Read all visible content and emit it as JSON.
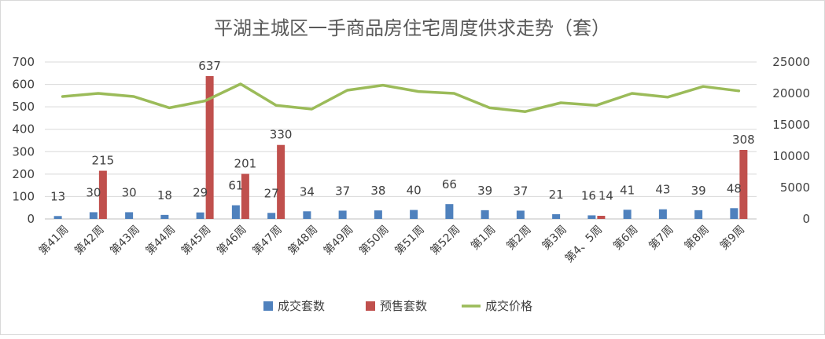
{
  "chart_data": {
    "type": "bar",
    "title": "平湖主城区一手商品房住宅周度供求走势（套）",
    "categories": [
      "第41周",
      "第42周",
      "第43周",
      "第44周",
      "第45周",
      "第46周",
      "第47周",
      "第48周",
      "第49周",
      "第50周",
      "第51周",
      "第52周",
      "第1周",
      "第2周",
      "第3周",
      "第4、5周",
      "第6周",
      "第7周",
      "第8周",
      "第9周"
    ],
    "series": [
      {
        "name": "成交套数",
        "kind": "bar",
        "axis": "left",
        "color": "#4F81BD",
        "values": [
          13,
          30,
          30,
          18,
          29,
          61,
          27,
          34,
          37,
          38,
          40,
          66,
          39,
          37,
          21,
          16,
          41,
          43,
          39,
          48
        ]
      },
      {
        "name": "预售套数",
        "kind": "bar",
        "axis": "left",
        "color": "#C0504D",
        "values": [
          0,
          215,
          0,
          0,
          637,
          201,
          330,
          0,
          0,
          0,
          0,
          0,
          0,
          0,
          0,
          14,
          0,
          0,
          0,
          308
        ],
        "labels": [
          "",
          "215",
          "",
          "",
          "637",
          "201",
          "330",
          "",
          "",
          "",
          "",
          "",
          "",
          "",
          "",
          "14",
          "",
          "",
          "",
          "308"
        ]
      },
      {
        "name": "成交价格",
        "kind": "line",
        "axis": "right",
        "color": "#9BBB59",
        "values": [
          19500,
          20000,
          19500,
          17700,
          18800,
          21500,
          18100,
          17500,
          20500,
          21300,
          20300,
          20000,
          17700,
          17100,
          18500,
          18100,
          20000,
          19400,
          21100,
          20400
        ]
      }
    ],
    "y_left": {
      "min": 0,
      "max": 700,
      "ticks": [
        "0",
        "100",
        "200",
        "300",
        "400",
        "500",
        "600",
        "700"
      ]
    },
    "y_right": {
      "min": 0,
      "max": 25000,
      "ticks": [
        "0",
        "5000",
        "10000",
        "15000",
        "20000",
        "25000"
      ]
    },
    "grid": true,
    "legend": {
      "position": "bottom",
      "items": [
        "成交套数",
        "预售套数",
        "成交价格"
      ]
    }
  }
}
